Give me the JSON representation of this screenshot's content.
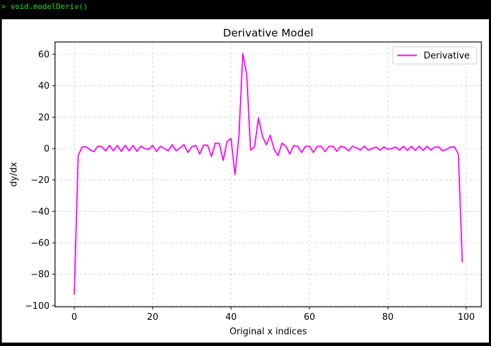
{
  "console": {
    "prompt": ">",
    "command": "void.modelDeriv()"
  },
  "chart_data": {
    "type": "line",
    "title": "Derivative Model",
    "xlabel": "Original x indices",
    "ylabel": "dy/dx",
    "xlim": [
      -5,
      104
    ],
    "ylim": [
      -101,
      68
    ],
    "xticks": [
      0,
      20,
      40,
      60,
      80,
      100
    ],
    "yticks": [
      -100,
      -80,
      -60,
      -40,
      -20,
      0,
      20,
      40,
      60
    ],
    "grid": true,
    "legend_position": "upper right",
    "series": [
      {
        "name": "Derivative",
        "color": "#ff00ff",
        "x": [
          0,
          1,
          2,
          3,
          4,
          5,
          6,
          7,
          8,
          9,
          10,
          11,
          12,
          13,
          14,
          15,
          16,
          17,
          18,
          19,
          20,
          21,
          22,
          23,
          24,
          25,
          26,
          27,
          28,
          29,
          30,
          31,
          32,
          33,
          34,
          35,
          36,
          37,
          38,
          39,
          40,
          41,
          42,
          43,
          44,
          45,
          46,
          47,
          48,
          49,
          50,
          51,
          52,
          53,
          54,
          55,
          56,
          57,
          58,
          59,
          60,
          61,
          62,
          63,
          64,
          65,
          66,
          67,
          68,
          69,
          70,
          71,
          72,
          73,
          74,
          75,
          76,
          77,
          78,
          79,
          80,
          81,
          82,
          83,
          84,
          85,
          86,
          87,
          88,
          89,
          90,
          91,
          92,
          93,
          94,
          95,
          96,
          97,
          98,
          99
        ],
        "values": [
          -93,
          -4.5,
          1,
          1.2,
          -0.8,
          -2,
          1.5,
          1.2,
          -1.5,
          2,
          -1.5,
          2,
          -1.8,
          2,
          -1.5,
          2,
          -1.8,
          1.5,
          0,
          -0.5,
          2,
          -1.8,
          1.5,
          0,
          -1.5,
          2.5,
          -1.5,
          0.5,
          2.5,
          -2.5,
          1.2,
          2,
          -3.5,
          2.2,
          2.2,
          -5,
          3.5,
          3.2,
          -7.5,
          4.5,
          6.5,
          -16.5,
          7.5,
          60.5,
          47,
          -1,
          1.2,
          19.5,
          8,
          2.3,
          8.5,
          -0.5,
          -4.5,
          3.5,
          1.5,
          -3.5,
          2,
          1.5,
          -2.5,
          1.5,
          1.5,
          -2.5,
          1.5,
          1.5,
          -2,
          1.5,
          1.5,
          -1.8,
          1.5,
          0.8,
          -1.5,
          1.5,
          0.5,
          -1,
          1.5,
          -1,
          0,
          1,
          -1,
          1,
          -0.5,
          0,
          1,
          -1,
          1.5,
          -1.2,
          1.5,
          -1.2,
          1.5,
          -1.2,
          1.5,
          -1,
          1,
          1,
          -1.5,
          -0.5,
          1,
          1,
          -3.5,
          -72.5
        ]
      }
    ]
  }
}
